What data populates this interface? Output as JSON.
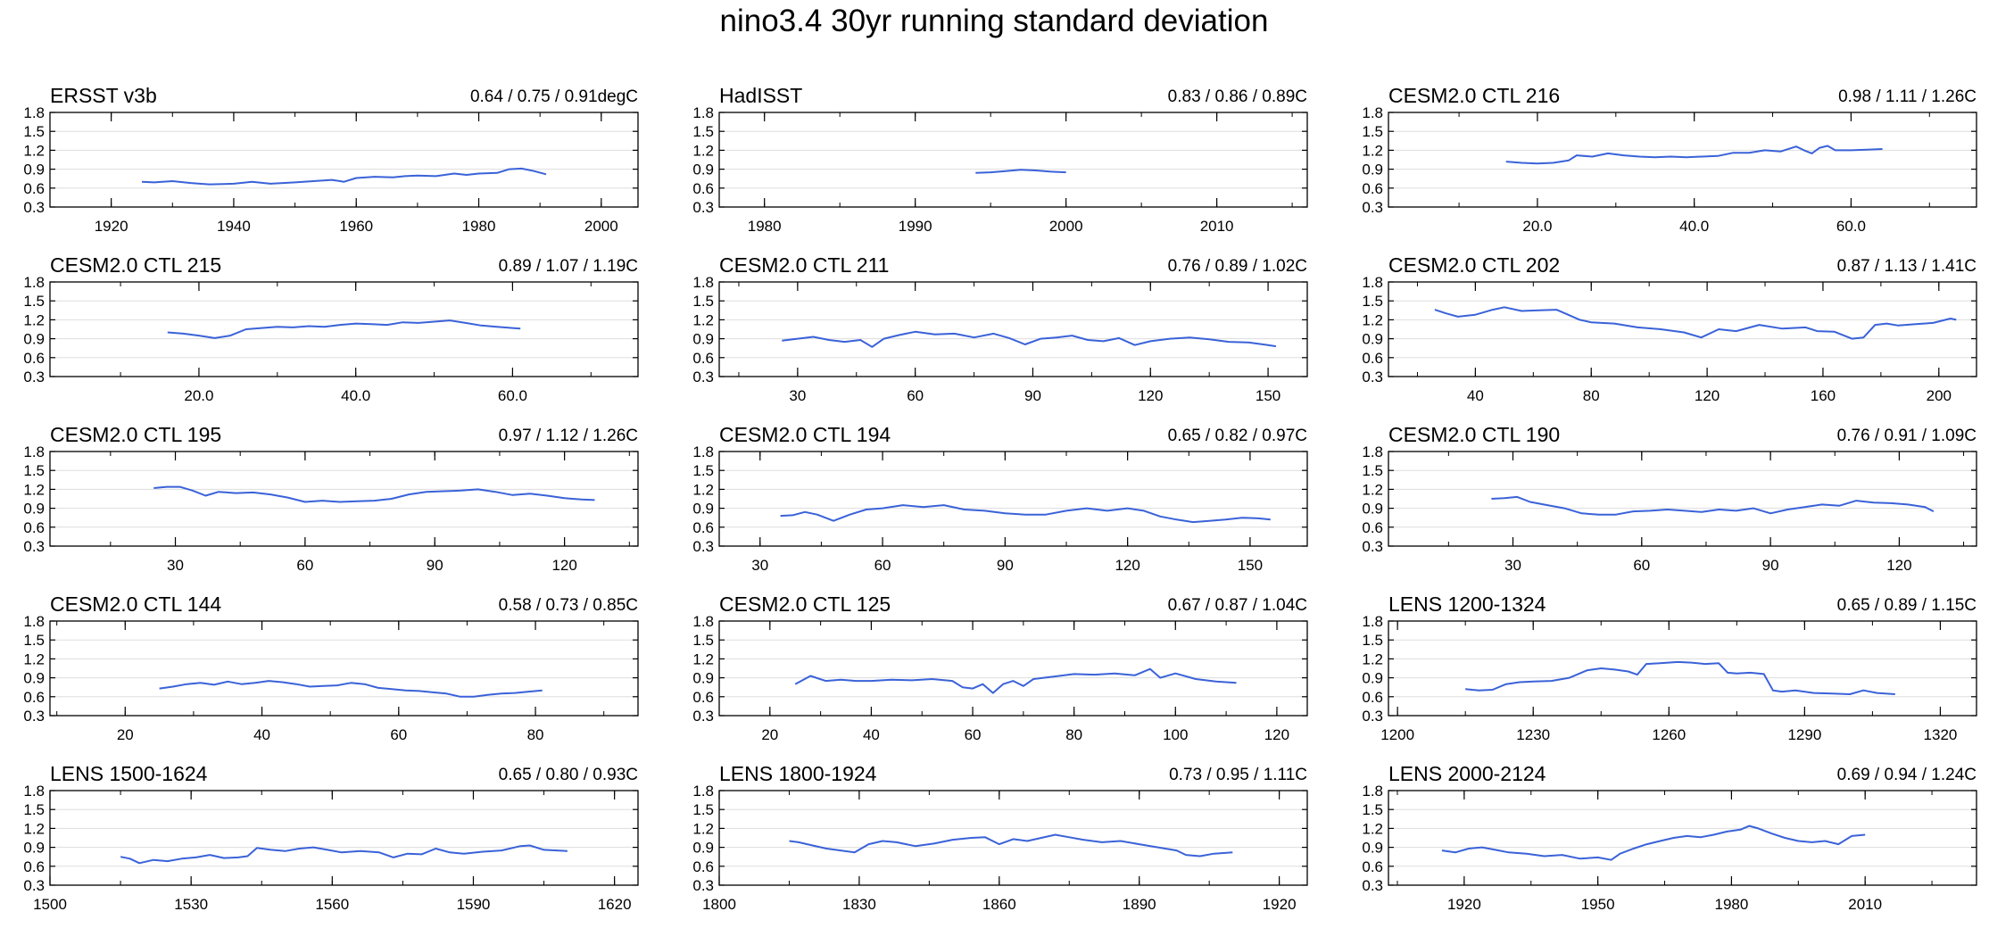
{
  "figure_title": "nino3.4 30yr running standard deviation",
  "colors": {
    "line": "#3a62d8",
    "axis": "#000000",
    "grid": "#dddddd"
  },
  "chart_data": [
    {
      "type": "line",
      "title": "ERSST v3b",
      "stats": "0.64 / 0.75 / 0.91degC",
      "xlim": [
        1910,
        2006
      ],
      "xticks": [
        1920,
        1940,
        1960,
        1980,
        2000
      ],
      "xtick_labels": [
        "1920",
        "1940",
        "1960",
        "1980",
        "2000"
      ],
      "ylim": [
        0.3,
        1.8
      ],
      "yticks": [
        "0.3",
        "0.6",
        "0.9",
        "1.2",
        "1.5",
        "1.8"
      ],
      "x": [
        1925,
        1927,
        1930,
        1933,
        1936,
        1940,
        1943,
        1946,
        1950,
        1953,
        1956,
        1958,
        1960,
        1963,
        1966,
        1968,
        1970,
        1973,
        1976,
        1978,
        1980,
        1983,
        1985,
        1987,
        1989,
        1991
      ],
      "y": [
        0.7,
        0.69,
        0.71,
        0.68,
        0.66,
        0.67,
        0.7,
        0.67,
        0.69,
        0.71,
        0.73,
        0.7,
        0.76,
        0.78,
        0.77,
        0.79,
        0.8,
        0.79,
        0.83,
        0.81,
        0.83,
        0.84,
        0.9,
        0.91,
        0.87,
        0.82
      ]
    },
    {
      "type": "line",
      "title": "HadISST",
      "stats": "0.83 / 0.86 / 0.89C",
      "xlim": [
        1977,
        2016
      ],
      "xticks": [
        1980,
        1990,
        2000,
        2010
      ],
      "xtick_labels": [
        "1980",
        "1990",
        "2000",
        "2010"
      ],
      "ylim": [
        0.3,
        1.8
      ],
      "yticks": [
        "0.3",
        "0.6",
        "0.9",
        "1.2",
        "1.5",
        "1.8"
      ],
      "x": [
        1994,
        1995,
        1996,
        1997,
        1998,
        1999,
        2000
      ],
      "y": [
        0.84,
        0.85,
        0.87,
        0.89,
        0.88,
        0.86,
        0.85
      ]
    },
    {
      "type": "line",
      "title": "CESM2.0 CTL 216",
      "stats": "0.98 / 1.11 / 1.26C",
      "xlim": [
        1,
        76
      ],
      "xticks": [
        20,
        40,
        60
      ],
      "xtick_labels": [
        "20.0",
        "40.0",
        "60.0"
      ],
      "ylim": [
        0.3,
        1.8
      ],
      "yticks": [
        "0.3",
        "0.6",
        "0.9",
        "1.2",
        "1.5",
        "1.8"
      ],
      "x": [
        16,
        18,
        20,
        22,
        24,
        25,
        27,
        29,
        31,
        33,
        35,
        37,
        39,
        41,
        43,
        45,
        47,
        49,
        51,
        53,
        54,
        55,
        56,
        57,
        58,
        60,
        62,
        64
      ],
      "y": [
        1.02,
        1.0,
        0.99,
        1.0,
        1.04,
        1.12,
        1.1,
        1.15,
        1.12,
        1.1,
        1.09,
        1.1,
        1.09,
        1.1,
        1.11,
        1.16,
        1.16,
        1.2,
        1.18,
        1.26,
        1.2,
        1.15,
        1.24,
        1.27,
        1.2,
        1.2,
        1.21,
        1.22
      ]
    },
    {
      "type": "line",
      "title": "CESM2.0 CTL 215",
      "stats": "0.89 / 1.07 / 1.19C",
      "xlim": [
        1,
        76
      ],
      "xticks": [
        20,
        40,
        60
      ],
      "xtick_labels": [
        "20.0",
        "40.0",
        "60.0"
      ],
      "ylim": [
        0.3,
        1.8
      ],
      "yticks": [
        "0.3",
        "0.6",
        "0.9",
        "1.2",
        "1.5",
        "1.8"
      ],
      "x": [
        16,
        18,
        20,
        22,
        24,
        26,
        28,
        30,
        32,
        34,
        36,
        38,
        40,
        42,
        44,
        46,
        48,
        50,
        52,
        54,
        56,
        58,
        60,
        61
      ],
      "y": [
        1.0,
        0.98,
        0.95,
        0.91,
        0.95,
        1.05,
        1.07,
        1.09,
        1.08,
        1.1,
        1.09,
        1.12,
        1.14,
        1.13,
        1.12,
        1.16,
        1.15,
        1.17,
        1.19,
        1.15,
        1.11,
        1.09,
        1.07,
        1.06
      ]
    },
    {
      "type": "line",
      "title": "CESM2.0 CTL 211",
      "stats": "0.76 / 0.89 / 1.02C",
      "xlim": [
        10,
        160
      ],
      "xticks": [
        30,
        60,
        90,
        120,
        150
      ],
      "xtick_labels": [
        "30",
        "60",
        "90",
        "120",
        "150"
      ],
      "ylim": [
        0.3,
        1.8
      ],
      "yticks": [
        "0.3",
        "0.6",
        "0.9",
        "1.2",
        "1.5",
        "1.8"
      ],
      "x": [
        26,
        30,
        34,
        38,
        42,
        46,
        49,
        52,
        56,
        60,
        65,
        70,
        75,
        80,
        84,
        88,
        92,
        96,
        100,
        104,
        108,
        112,
        116,
        120,
        125,
        130,
        135,
        140,
        145,
        150,
        152
      ],
      "y": [
        0.87,
        0.9,
        0.93,
        0.88,
        0.85,
        0.88,
        0.77,
        0.9,
        0.96,
        1.01,
        0.97,
        0.98,
        0.92,
        0.98,
        0.91,
        0.81,
        0.9,
        0.92,
        0.95,
        0.88,
        0.86,
        0.91,
        0.8,
        0.86,
        0.9,
        0.92,
        0.89,
        0.85,
        0.84,
        0.8,
        0.78
      ]
    },
    {
      "type": "line",
      "title": "CESM2.0 CTL 202",
      "stats": "0.87 / 1.13 / 1.41C",
      "xlim": [
        10,
        213
      ],
      "xticks": [
        40,
        80,
        120,
        160,
        200
      ],
      "xtick_labels": [
        "40",
        "80",
        "120",
        "160",
        "200"
      ],
      "ylim": [
        0.3,
        1.8
      ],
      "yticks": [
        "0.3",
        "0.6",
        "0.9",
        "1.2",
        "1.5",
        "1.8"
      ],
      "x": [
        26,
        30,
        34,
        40,
        46,
        50,
        56,
        62,
        68,
        72,
        76,
        80,
        88,
        96,
        104,
        112,
        118,
        124,
        130,
        138,
        146,
        154,
        158,
        164,
        170,
        174,
        178,
        182,
        186,
        192,
        198,
        204,
        206
      ],
      "y": [
        1.36,
        1.3,
        1.25,
        1.28,
        1.36,
        1.4,
        1.34,
        1.35,
        1.36,
        1.28,
        1.2,
        1.16,
        1.14,
        1.08,
        1.05,
        1.0,
        0.92,
        1.05,
        1.02,
        1.12,
        1.06,
        1.08,
        1.02,
        1.01,
        0.9,
        0.92,
        1.12,
        1.14,
        1.11,
        1.13,
        1.15,
        1.22,
        1.2
      ]
    },
    {
      "type": "line",
      "title": "CESM2.0 CTL 195",
      "stats": "0.97 / 1.12 / 1.26C",
      "xlim": [
        1,
        137
      ],
      "xticks": [
        30,
        60,
        90,
        120
      ],
      "xtick_labels": [
        "30",
        "60",
        "90",
        "120"
      ],
      "ylim": [
        0.3,
        1.8
      ],
      "yticks": [
        "0.3",
        "0.6",
        "0.9",
        "1.2",
        "1.5",
        "1.8"
      ],
      "x": [
        25,
        28,
        31,
        34,
        37,
        40,
        44,
        48,
        52,
        56,
        60,
        64,
        68,
        72,
        76,
        80,
        84,
        88,
        92,
        96,
        100,
        104,
        108,
        112,
        116,
        120,
        124,
        127
      ],
      "y": [
        1.22,
        1.24,
        1.24,
        1.18,
        1.1,
        1.16,
        1.14,
        1.15,
        1.12,
        1.07,
        1.0,
        1.02,
        1.0,
        1.01,
        1.02,
        1.05,
        1.12,
        1.16,
        1.17,
        1.18,
        1.2,
        1.16,
        1.11,
        1.13,
        1.1,
        1.06,
        1.04,
        1.03
      ]
    },
    {
      "type": "line",
      "title": "CESM2.0 CTL 194",
      "stats": "0.65 / 0.82 / 0.97C",
      "xlim": [
        20,
        164
      ],
      "xticks": [
        30,
        60,
        90,
        120,
        150
      ],
      "xtick_labels": [
        "30",
        "60",
        "90",
        "120",
        "150"
      ],
      "ylim": [
        0.3,
        1.8
      ],
      "yticks": [
        "0.3",
        "0.6",
        "0.9",
        "1.2",
        "1.5",
        "1.8"
      ],
      "x": [
        35,
        38,
        41,
        44,
        48,
        52,
        56,
        60,
        65,
        70,
        75,
        80,
        85,
        90,
        95,
        100,
        105,
        110,
        115,
        120,
        124,
        128,
        132,
        136,
        140,
        144,
        148,
        152,
        155
      ],
      "y": [
        0.78,
        0.79,
        0.84,
        0.8,
        0.7,
        0.8,
        0.88,
        0.9,
        0.95,
        0.92,
        0.95,
        0.88,
        0.86,
        0.82,
        0.8,
        0.8,
        0.86,
        0.9,
        0.86,
        0.9,
        0.86,
        0.77,
        0.72,
        0.68,
        0.7,
        0.72,
        0.75,
        0.74,
        0.72
      ]
    },
    {
      "type": "line",
      "title": "CESM2.0 CTL 190",
      "stats": "0.76 / 0.91 / 1.09C",
      "xlim": [
        1,
        138
      ],
      "xticks": [
        30,
        60,
        90,
        120
      ],
      "xtick_labels": [
        "30",
        "60",
        "90",
        "120"
      ],
      "ylim": [
        0.3,
        1.8
      ],
      "yticks": [
        "0.3",
        "0.6",
        "0.9",
        "1.2",
        "1.5",
        "1.8"
      ],
      "x": [
        25,
        28,
        31,
        34,
        38,
        42,
        46,
        50,
        54,
        58,
        62,
        66,
        70,
        74,
        78,
        82,
        86,
        90,
        94,
        98,
        102,
        106,
        110,
        114,
        118,
        122,
        126,
        128
      ],
      "y": [
        1.05,
        1.06,
        1.08,
        1.0,
        0.95,
        0.9,
        0.82,
        0.8,
        0.8,
        0.85,
        0.86,
        0.88,
        0.86,
        0.84,
        0.88,
        0.86,
        0.9,
        0.82,
        0.88,
        0.92,
        0.96,
        0.94,
        1.02,
        0.99,
        0.98,
        0.96,
        0.92,
        0.85
      ]
    },
    {
      "type": "line",
      "title": "CESM2.0 CTL 144",
      "stats": "0.58 / 0.73 / 0.85C",
      "xlim": [
        9,
        95
      ],
      "xticks": [
        20,
        40,
        60,
        80
      ],
      "xtick_labels": [
        "20",
        "40",
        "60",
        "80"
      ],
      "ylim": [
        0.3,
        1.8
      ],
      "yticks": [
        "0.3",
        "0.6",
        "0.9",
        "1.2",
        "1.5",
        "1.8"
      ],
      "x": [
        25,
        27,
        29,
        31,
        33,
        35,
        37,
        39,
        41,
        43,
        45,
        47,
        49,
        51,
        53,
        55,
        57,
        59,
        61,
        63,
        65,
        67,
        69,
        71,
        73,
        75,
        77,
        79,
        81
      ],
      "y": [
        0.73,
        0.76,
        0.8,
        0.82,
        0.79,
        0.84,
        0.8,
        0.82,
        0.85,
        0.83,
        0.8,
        0.76,
        0.77,
        0.78,
        0.82,
        0.8,
        0.74,
        0.72,
        0.7,
        0.69,
        0.67,
        0.65,
        0.6,
        0.6,
        0.63,
        0.65,
        0.66,
        0.68,
        0.7
      ]
    },
    {
      "type": "line",
      "title": "CESM2.0 CTL 125",
      "stats": "0.67 / 0.87 / 1.04C",
      "xlim": [
        10,
        126
      ],
      "xticks": [
        20,
        40,
        60,
        80,
        100,
        120
      ],
      "xtick_labels": [
        "20",
        "40",
        "60",
        "80",
        "100",
        "120"
      ],
      "ylim": [
        0.3,
        1.8
      ],
      "yticks": [
        "0.3",
        "0.6",
        "0.9",
        "1.2",
        "1.5",
        "1.8"
      ],
      "x": [
        25,
        28,
        31,
        34,
        37,
        40,
        44,
        48,
        52,
        56,
        58,
        60,
        62,
        64,
        66,
        68,
        70,
        72,
        76,
        80,
        84,
        88,
        92,
        95,
        97,
        100,
        104,
        108,
        112
      ],
      "y": [
        0.8,
        0.93,
        0.85,
        0.87,
        0.85,
        0.85,
        0.87,
        0.86,
        0.88,
        0.85,
        0.75,
        0.73,
        0.8,
        0.66,
        0.8,
        0.85,
        0.77,
        0.88,
        0.92,
        0.96,
        0.95,
        0.97,
        0.94,
        1.04,
        0.9,
        0.97,
        0.88,
        0.84,
        0.82
      ]
    },
    {
      "type": "line",
      "title": "LENS 1200-1324",
      "stats": "0.65 / 0.89 / 1.15C",
      "xlim": [
        1198,
        1328
      ],
      "xticks": [
        1200,
        1230,
        1260,
        1290,
        1320
      ],
      "xtick_labels": [
        "1200",
        "1230",
        "1260",
        "1290",
        "1320"
      ],
      "ylim": [
        0.3,
        1.8
      ],
      "yticks": [
        "0.3",
        "0.6",
        "0.9",
        "1.2",
        "1.5",
        "1.8"
      ],
      "x": [
        1215,
        1218,
        1221,
        1224,
        1227,
        1230,
        1234,
        1238,
        1242,
        1245,
        1248,
        1251,
        1253,
        1255,
        1258,
        1262,
        1265,
        1268,
        1271,
        1273,
        1275,
        1278,
        1281,
        1283,
        1285,
        1288,
        1292,
        1296,
        1300,
        1303,
        1306,
        1310
      ],
      "y": [
        0.72,
        0.7,
        0.71,
        0.8,
        0.83,
        0.84,
        0.85,
        0.9,
        1.02,
        1.05,
        1.03,
        1.0,
        0.95,
        1.12,
        1.13,
        1.15,
        1.14,
        1.12,
        1.13,
        0.98,
        0.97,
        0.98,
        0.96,
        0.7,
        0.68,
        0.7,
        0.66,
        0.65,
        0.64,
        0.7,
        0.66,
        0.64
      ]
    },
    {
      "type": "line",
      "title": "LENS 1500-1624",
      "stats": "0.65 / 0.80 / 0.93C",
      "xlim": [
        1500,
        1625
      ],
      "xticks": [
        1500,
        1530,
        1560,
        1590,
        1620
      ],
      "xtick_labels": [
        "1500",
        "1530",
        "1560",
        "1590",
        "1620"
      ],
      "ylim": [
        0.3,
        1.8
      ],
      "yticks": [
        "0.3",
        "0.6",
        "0.9",
        "1.2",
        "1.5",
        "1.8"
      ],
      "x": [
        1515,
        1517,
        1519,
        1522,
        1525,
        1528,
        1531,
        1534,
        1537,
        1540,
        1542,
        1544,
        1547,
        1550,
        1553,
        1556,
        1559,
        1562,
        1566,
        1570,
        1573,
        1576,
        1579,
        1582,
        1585,
        1588,
        1592,
        1596,
        1600,
        1602,
        1605,
        1610
      ],
      "y": [
        0.75,
        0.72,
        0.65,
        0.7,
        0.68,
        0.72,
        0.74,
        0.78,
        0.73,
        0.74,
        0.76,
        0.89,
        0.86,
        0.84,
        0.88,
        0.9,
        0.86,
        0.82,
        0.84,
        0.82,
        0.74,
        0.8,
        0.79,
        0.88,
        0.82,
        0.8,
        0.83,
        0.85,
        0.92,
        0.93,
        0.86,
        0.84
      ]
    },
    {
      "type": "line",
      "title": "LENS 1800-1924",
      "stats": "0.73 / 0.95 / 1.11C",
      "xlim": [
        1800,
        1926
      ],
      "xticks": [
        1800,
        1830,
        1860,
        1890,
        1920
      ],
      "xtick_labels": [
        "1800",
        "1830",
        "1860",
        "1890",
        "1920"
      ],
      "ylim": [
        0.3,
        1.8
      ],
      "yticks": [
        "0.3",
        "0.6",
        "0.9",
        "1.2",
        "1.5",
        "1.8"
      ],
      "x": [
        1815,
        1817,
        1820,
        1823,
        1826,
        1829,
        1832,
        1835,
        1838,
        1842,
        1846,
        1850,
        1854,
        1857,
        1860,
        1863,
        1866,
        1869,
        1872,
        1875,
        1878,
        1882,
        1886,
        1890,
        1894,
        1898,
        1900,
        1903,
        1906,
        1910
      ],
      "y": [
        1.0,
        0.98,
        0.93,
        0.88,
        0.85,
        0.82,
        0.95,
        1.0,
        0.98,
        0.92,
        0.96,
        1.02,
        1.05,
        1.06,
        0.95,
        1.03,
        1.0,
        1.05,
        1.1,
        1.06,
        1.02,
        0.98,
        1.0,
        0.95,
        0.9,
        0.85,
        0.78,
        0.76,
        0.8,
        0.82
      ]
    },
    {
      "type": "line",
      "title": "LENS 2000-2124",
      "stats": "0.69 / 0.94 / 1.24C",
      "xlim": [
        1903,
        2035
      ],
      "xticks": [
        1920,
        1950,
        1980,
        2010
      ],
      "xtick_labels": [
        "1920",
        "1950",
        "1980",
        "2010"
      ],
      "ylim": [
        0.3,
        1.8
      ],
      "yticks": [
        "0.3",
        "0.6",
        "0.9",
        "1.2",
        "1.5",
        "1.8"
      ],
      "x": [
        1915,
        1918,
        1921,
        1924,
        1927,
        1930,
        1934,
        1938,
        1942,
        1946,
        1950,
        1953,
        1955,
        1958,
        1961,
        1964,
        1967,
        1970,
        1973,
        1976,
        1979,
        1982,
        1984,
        1986,
        1989,
        1992,
        1995,
        1998,
        2001,
        2004,
        2007,
        2010
      ],
      "y": [
        0.85,
        0.82,
        0.88,
        0.9,
        0.86,
        0.82,
        0.8,
        0.76,
        0.78,
        0.72,
        0.74,
        0.7,
        0.8,
        0.88,
        0.95,
        1.0,
        1.05,
        1.08,
        1.06,
        1.1,
        1.15,
        1.18,
        1.24,
        1.2,
        1.12,
        1.05,
        1.0,
        0.98,
        1.0,
        0.95,
        1.08,
        1.1
      ]
    }
  ]
}
